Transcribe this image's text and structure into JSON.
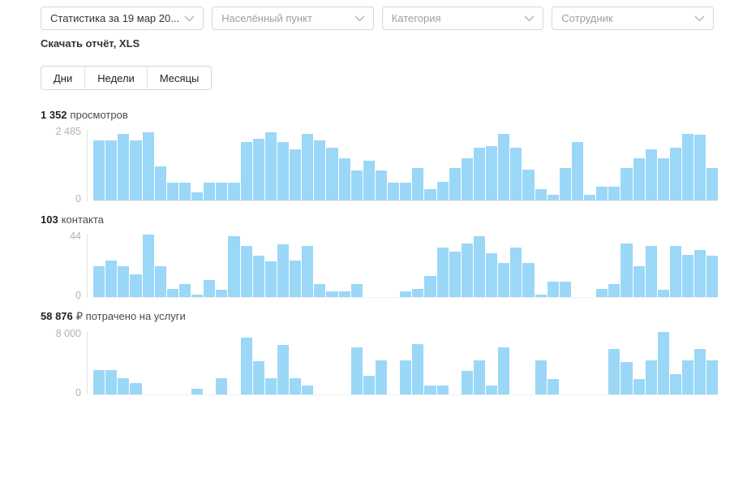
{
  "colors": {
    "bar": "#9bd7f7",
    "axis_label": "#b3b3b3",
    "border": "#d7d7d7"
  },
  "filters": [
    {
      "label": "Статистика за 19 мар 20...",
      "is_placeholder": false
    },
    {
      "label": "Населённый пункт",
      "is_placeholder": true
    },
    {
      "label": "Категория",
      "is_placeholder": true
    },
    {
      "label": "Сотрудник",
      "is_placeholder": true
    }
  ],
  "download_link": "Скачать отчёт, XLS",
  "tabs": [
    {
      "label": "Дни"
    },
    {
      "label": "Недели"
    },
    {
      "label": "Месяцы"
    }
  ],
  "chart_data": [
    {
      "type": "bar",
      "title_value": "1 352",
      "title_label": "просмотров",
      "ymax_label": "2 485",
      "ymin_label": "0",
      "ylim": [
        0,
        2485
      ],
      "xlabel": "",
      "x_tick_labels_visible": false,
      "values": [
        2100,
        2100,
        2330,
        2100,
        2410,
        1200,
        620,
        620,
        280,
        620,
        620,
        620,
        2050,
        2180,
        2410,
        2050,
        1800,
        2330,
        2100,
        1850,
        1500,
        1050,
        1400,
        1050,
        620,
        620,
        1150,
        400,
        650,
        1150,
        1500,
        1850,
        1900,
        2330,
        1850,
        1100,
        400,
        200,
        1150,
        2050,
        200,
        500,
        500,
        1150,
        1500,
        1800,
        1500,
        1850,
        2330,
        2300,
        1150
      ]
    },
    {
      "type": "bar",
      "title_value": "103",
      "title_label": "контакта",
      "ymax_label": "44",
      "ymin_label": "0",
      "ylim": [
        0,
        44
      ],
      "xlabel": "",
      "x_tick_labels_visible": false,
      "values": [
        22,
        26,
        22,
        16,
        44,
        22,
        6,
        9,
        2,
        12,
        5,
        43,
        36,
        29,
        25,
        37,
        26,
        36,
        9,
        4,
        4,
        9,
        0,
        0,
        0,
        4,
        6,
        15,
        35,
        32,
        38,
        43,
        31,
        24,
        35,
        24,
        2,
        11,
        11,
        0,
        0,
        6,
        9,
        38,
        22,
        36,
        5,
        36,
        30,
        33,
        29
      ]
    },
    {
      "type": "bar",
      "title_value": "58 876",
      "title_label": "₽ потрачено на услуги",
      "ymax_label": "8 000",
      "ymin_label": "0",
      "ylim": [
        0,
        8000
      ],
      "xlabel": "",
      "x_tick_labels_visible": false,
      "values": [
        3100,
        3100,
        2100,
        1500,
        0,
        0,
        0,
        0,
        700,
        0,
        2100,
        0,
        7300,
        4300,
        2100,
        6300,
        2100,
        1100,
        0,
        0,
        0,
        6000,
        2400,
        4400,
        0,
        4400,
        6400,
        1100,
        1100,
        0,
        3000,
        4400,
        1100,
        6000,
        0,
        0,
        4400,
        2000,
        0,
        0,
        0,
        0,
        5800,
        4200,
        2000,
        4400,
        8000,
        2600,
        4400,
        5800,
        4400
      ]
    }
  ]
}
